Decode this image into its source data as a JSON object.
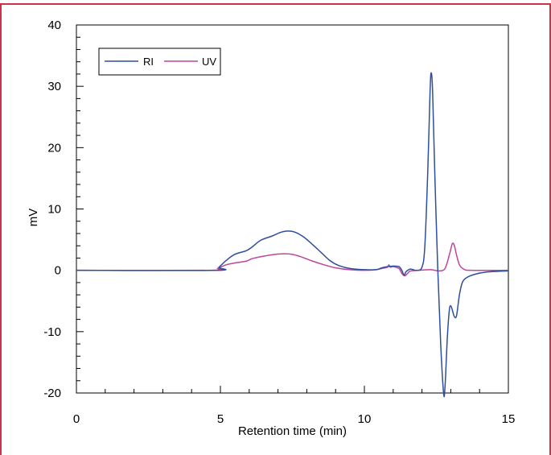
{
  "chart_data": {
    "type": "line",
    "xlabel": "Retention time (min)",
    "ylabel": "mV",
    "xlim": [
      0,
      15
    ],
    "ylim": [
      -20,
      40
    ],
    "x_ticks": [
      "0",
      "5",
      "10",
      "15"
    ],
    "y_ticks": [
      "-20",
      "-10",
      "0",
      "10",
      "20",
      "30",
      "40"
    ],
    "grid": false,
    "legend_position": "top-left",
    "series": [
      {
        "name": "RI",
        "color": "#2e4f9e",
        "points": [
          [
            0,
            0
          ],
          [
            4.8,
            0
          ],
          [
            4.95,
            0.5
          ],
          [
            5.2,
            1.6
          ],
          [
            5.5,
            2.6
          ],
          [
            5.9,
            3.2
          ],
          [
            6.1,
            3.8
          ],
          [
            6.4,
            4.9
          ],
          [
            6.8,
            5.6
          ],
          [
            7.1,
            6.2
          ],
          [
            7.35,
            6.4
          ],
          [
            7.6,
            6.2
          ],
          [
            7.9,
            5.4
          ],
          [
            8.2,
            4.2
          ],
          [
            8.5,
            2.9
          ],
          [
            8.8,
            1.6
          ],
          [
            9.1,
            0.8
          ],
          [
            9.5,
            0.3
          ],
          [
            10.0,
            0.1
          ],
          [
            10.4,
            0.1
          ],
          [
            10.6,
            0.4
          ],
          [
            10.8,
            0.6
          ],
          [
            11.0,
            0.7
          ],
          [
            11.2,
            0.6
          ],
          [
            11.3,
            0.0
          ],
          [
            11.38,
            -0.8
          ],
          [
            11.45,
            -0.2
          ],
          [
            11.6,
            0.2
          ],
          [
            11.8,
            0
          ],
          [
            12.0,
            0.5
          ],
          [
            12.1,
            4
          ],
          [
            12.2,
            16
          ],
          [
            12.28,
            29
          ],
          [
            12.32,
            32.2
          ],
          [
            12.37,
            29
          ],
          [
            12.45,
            15
          ],
          [
            12.55,
            0
          ],
          [
            12.65,
            -12
          ],
          [
            12.75,
            -20
          ],
          [
            12.8,
            -19
          ],
          [
            12.88,
            -11
          ],
          [
            12.95,
            -6.5
          ],
          [
            13.0,
            -5.8
          ],
          [
            13.05,
            -6.4
          ],
          [
            13.12,
            -7.5
          ],
          [
            13.2,
            -7.4
          ],
          [
            13.3,
            -4
          ],
          [
            13.4,
            -2
          ],
          [
            13.55,
            -1.2
          ],
          [
            13.8,
            -0.7
          ],
          [
            14.2,
            -0.3
          ],
          [
            15,
            -0.1
          ]
        ]
      },
      {
        "name": "UV",
        "color": "#c0449c",
        "points": [
          [
            0,
            0
          ],
          [
            4.75,
            0
          ],
          [
            4.9,
            0.3
          ],
          [
            5.2,
            0.9
          ],
          [
            5.5,
            1.2
          ],
          [
            5.9,
            1.5
          ],
          [
            6.1,
            1.9
          ],
          [
            6.5,
            2.3
          ],
          [
            6.9,
            2.6
          ],
          [
            7.2,
            2.7
          ],
          [
            7.5,
            2.6
          ],
          [
            7.8,
            2.2
          ],
          [
            8.2,
            1.5
          ],
          [
            8.6,
            0.9
          ],
          [
            9.0,
            0.4
          ],
          [
            9.5,
            0.1
          ],
          [
            10.0,
            0
          ],
          [
            10.4,
            0.1
          ],
          [
            10.6,
            0.3
          ],
          [
            10.8,
            0.5
          ],
          [
            10.85,
            0.9
          ],
          [
            10.9,
            0.5
          ],
          [
            11.0,
            0.6
          ],
          [
            11.2,
            0.3
          ],
          [
            11.3,
            -0.5
          ],
          [
            11.4,
            -0.9
          ],
          [
            11.5,
            -0.5
          ],
          [
            11.6,
            -0.1
          ],
          [
            11.9,
            0
          ],
          [
            12.3,
            0.1
          ],
          [
            12.6,
            -0.1
          ],
          [
            12.8,
            0.3
          ],
          [
            12.95,
            2.5
          ],
          [
            13.05,
            4.3
          ],
          [
            13.12,
            4.1
          ],
          [
            13.2,
            2.5
          ],
          [
            13.3,
            0.9
          ],
          [
            13.45,
            0.2
          ],
          [
            13.7,
            0
          ],
          [
            15,
            0
          ]
        ]
      }
    ]
  }
}
